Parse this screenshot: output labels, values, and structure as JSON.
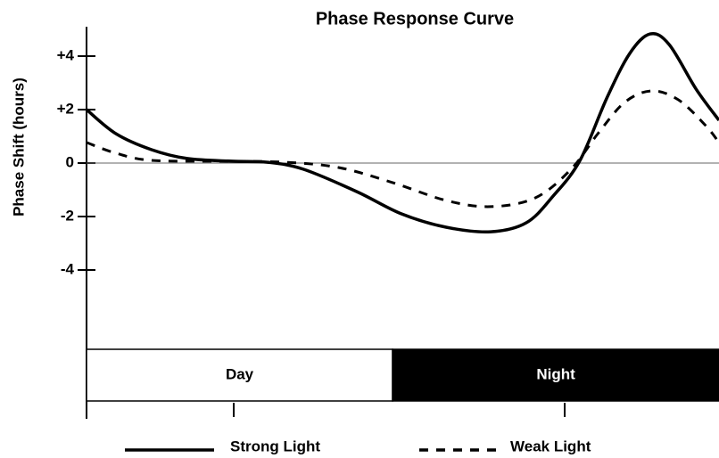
{
  "chart_data": {
    "type": "line",
    "title": "Phase Response Curve",
    "ylabel": "Phase Shift (hours)",
    "xlim": [
      0,
      24.8
    ],
    "ylim": [
      -7,
      5
    ],
    "yticks": [
      {
        "value": 4,
        "label": "+4"
      },
      {
        "value": 2,
        "label": "+2"
      },
      0,
      -2,
      -4
    ],
    "bands": [
      {
        "label": "Day",
        "start": 0,
        "end": 12,
        "color": "#ffffff"
      },
      {
        "label": "Night",
        "start": 12,
        "end": 24.8,
        "color": "#000000"
      }
    ],
    "x": [
      0,
      1.15,
      2.55,
      3.95,
      5.7,
      7.1,
      8.5,
      10.6,
      12.35,
      14.1,
      15.85,
      17.25,
      18.3,
      19.35,
      20.4,
      21.3,
      22.1,
      22.85,
      23.9,
      24.8
    ],
    "series": [
      {
        "name": "Strong Light",
        "color": "#000000",
        "dash": "solid",
        "x": [
          0,
          1.15,
          2.55,
          3.95,
          5.7,
          7.1,
          8.5,
          10.6,
          12.35,
          14.1,
          15.85,
          17.25,
          18.3,
          19.35,
          20.4,
          21.3,
          22.1,
          22.85,
          23.9,
          24.8
        ],
        "values": [
          2.0,
          1.1,
          0.5,
          0.17,
          0.07,
          0.03,
          -0.23,
          -1.07,
          -1.9,
          -2.4,
          -2.57,
          -2.23,
          -1.23,
          0.1,
          2.43,
          4.1,
          4.83,
          4.43,
          2.77,
          1.6
        ]
      },
      {
        "name": "Weak Light",
        "color": "#000000",
        "dash": "dashed",
        "x": [
          0,
          1.15,
          2.55,
          5.35,
          7.8,
          9.9,
          12,
          14.1,
          15.85,
          17.6,
          19,
          20.05,
          21.1,
          22.15,
          23.2,
          24.25,
          24.8
        ],
        "values": [
          0.77,
          0.37,
          0.1,
          0.07,
          0.03,
          -0.17,
          -0.73,
          -1.4,
          -1.63,
          -1.3,
          -0.23,
          1.1,
          2.27,
          2.7,
          2.37,
          1.43,
          0.77
        ]
      }
    ]
  }
}
